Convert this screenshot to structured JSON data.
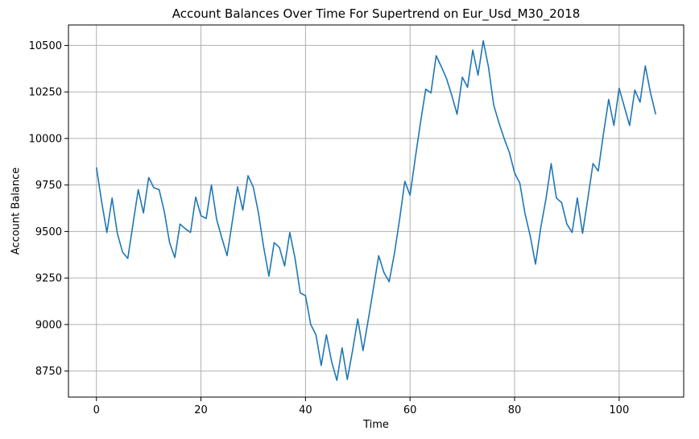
{
  "chart_data": {
    "type": "line",
    "title": "Account Balances Over Time For Supertrend on Eur_Usd_M30_2018",
    "xlabel": "Time",
    "ylabel": "Account Balance",
    "xlim": [
      -5.35,
      112.35
    ],
    "ylim": [
      8610,
      10610
    ],
    "xticks": [
      0,
      20,
      40,
      60,
      80,
      100
    ],
    "yticks": [
      8750,
      9000,
      9250,
      9500,
      9750,
      10000,
      10250,
      10500
    ],
    "grid": true,
    "series": [
      {
        "color": "#1f77b4",
        "x": [
          0,
          1,
          2,
          3,
          4,
          5,
          6,
          7,
          8,
          9,
          10,
          11,
          12,
          13,
          14,
          15,
          16,
          17,
          18,
          19,
          20,
          21,
          22,
          23,
          24,
          25,
          26,
          27,
          28,
          29,
          30,
          31,
          32,
          33,
          34,
          35,
          36,
          37,
          38,
          39,
          40,
          41,
          42,
          43,
          44,
          45,
          46,
          47,
          48,
          49,
          50,
          51,
          52,
          53,
          54,
          55,
          56,
          57,
          58,
          59,
          60,
          61,
          62,
          63,
          64,
          65,
          66,
          67,
          68,
          69,
          70,
          71,
          72,
          73,
          74,
          75,
          76,
          77,
          78,
          79,
          80,
          81,
          82,
          83,
          84,
          85,
          86,
          87,
          88,
          89,
          90,
          91,
          92,
          93,
          94,
          95,
          96,
          97,
          98,
          99,
          100,
          101,
          102,
          103,
          104,
          105,
          106,
          107
        ],
        "y": [
          9845,
          9660,
          9495,
          9680,
          9490,
          9390,
          9355,
          9540,
          9725,
          9600,
          9790,
          9735,
          9725,
          9605,
          9440,
          9360,
          9540,
          9515,
          9495,
          9685,
          9585,
          9570,
          9750,
          9565,
          9465,
          9370,
          9555,
          9740,
          9615,
          9800,
          9740,
          9600,
          9415,
          9260,
          9440,
          9415,
          9315,
          9495,
          9355,
          9170,
          9155,
          9000,
          8945,
          8780,
          8945,
          8800,
          8700,
          8875,
          8705,
          8860,
          9030,
          8860,
          9025,
          9195,
          9370,
          9280,
          9230,
          9380,
          9565,
          9770,
          9695,
          9895,
          10085,
          10265,
          10245,
          10445,
          10385,
          10320,
          10230,
          10130,
          10330,
          10275,
          10475,
          10340,
          10525,
          10385,
          10180,
          10085,
          10000,
          9925,
          9815,
          9760,
          9595,
          9475,
          9325,
          9520,
          9675,
          9865,
          9680,
          9655,
          9540,
          9495,
          9680,
          9490,
          9675,
          9865,
          9825,
          10025,
          10210,
          10070,
          10270,
          10170,
          10070,
          10260,
          10195,
          10390,
          10245,
          10130
        ]
      }
    ]
  }
}
